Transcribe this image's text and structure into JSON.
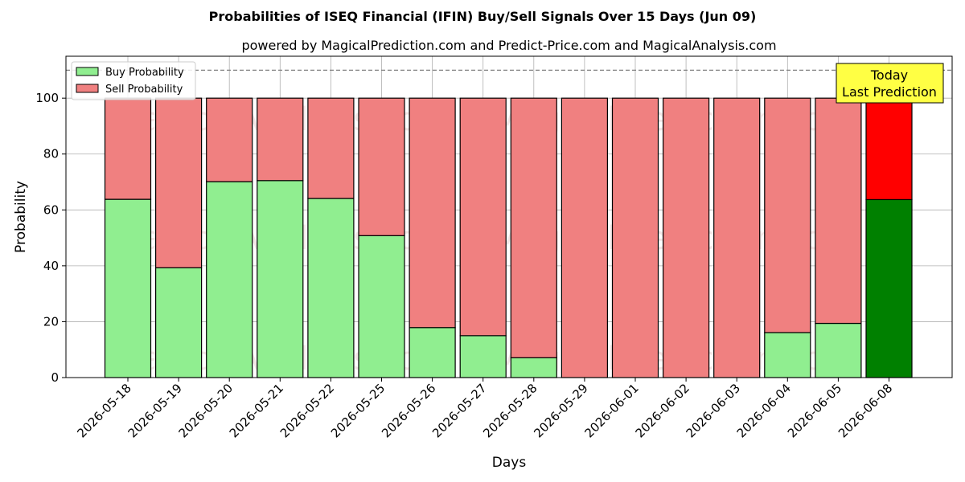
{
  "chart_data": {
    "type": "bar",
    "stacked": true,
    "title": "Probabilities of ISEQ Financial (IFIN) Buy/Sell Signals Over 15 Days (Jun 09)",
    "subtitle": "powered by MagicalPrediction.com and Predict-Price.com and MagicalAnalysis.com",
    "xlabel": "Days",
    "ylabel": "Probability",
    "ylim": [
      0,
      115
    ],
    "yticks": [
      0,
      20,
      40,
      60,
      80,
      100
    ],
    "reference_line": 110,
    "grid": true,
    "legend_position": "top-left",
    "categories": [
      "2026-05-18",
      "2026-05-19",
      "2026-05-20",
      "2026-05-21",
      "2026-05-22",
      "2026-05-25",
      "2026-05-26",
      "2026-05-27",
      "2026-05-28",
      "2026-05-29",
      "2026-06-01",
      "2026-06-02",
      "2026-06-03",
      "2026-06-04",
      "2026-06-05",
      "2026-06-08"
    ],
    "series": [
      {
        "name": "Buy Probability",
        "color": "#90ee90",
        "highlight_color": "#008000",
        "values": [
          63.8,
          39.3,
          70.1,
          70.5,
          64.1,
          50.8,
          17.9,
          15.0,
          7.1,
          0,
          0,
          0,
          0,
          16.1,
          19.4,
          63.7
        ]
      },
      {
        "name": "Sell Probability",
        "color": "#f08080",
        "highlight_color": "#ff0000",
        "values": [
          36.2,
          60.7,
          29.9,
          29.5,
          35.9,
          49.2,
          82.1,
          85.0,
          92.9,
          100,
          100,
          100,
          100,
          83.9,
          80.6,
          36.3
        ]
      }
    ],
    "highlight_index": 15,
    "annotation": {
      "line1": "Today",
      "line2": "Last Prediction",
      "color": "#ffff44"
    },
    "watermarks": [
      "MagicalAnalysis.com",
      "MagicalPrediction.com"
    ]
  }
}
